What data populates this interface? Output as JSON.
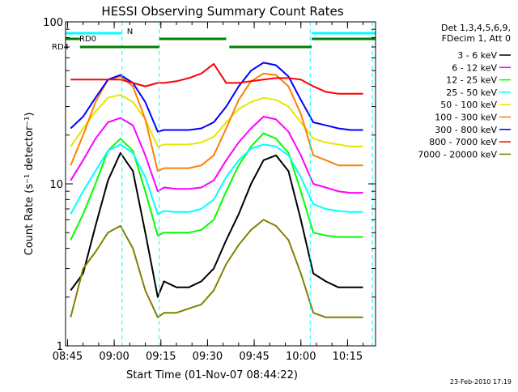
{
  "chart_data": {
    "type": "line",
    "title": "HESSI Observing Summary Count Rates",
    "xlabel": "Start Time (01-Nov-07 08:44:22)",
    "ylabel": "Count Rate (s⁻¹ detector⁻¹)",
    "yscale": "log",
    "ylim": [
      1,
      100
    ],
    "xlim": [
      "08:44:22",
      "10:24:00"
    ],
    "x_ticks": [
      "08:45",
      "09:00",
      "09:15",
      "09:30",
      "09:45",
      "10:00",
      "10:15"
    ],
    "y_ticks": [
      "1",
      "10",
      "100"
    ],
    "grid": false,
    "legend_position": "right",
    "legend_header": [
      "Det 1,3,4,5,6,9,",
      "FDecim 1, Att 0"
    ],
    "timestamp": "23-Feb-2010 17:19",
    "x": [
      "08:46",
      "08:50",
      "08:54",
      "08:58",
      "09:02",
      "09:06",
      "09:10",
      "09:14",
      "09:16",
      "09:20",
      "09:24",
      "09:28",
      "09:32",
      "09:36",
      "09:40",
      "09:44",
      "09:48",
      "09:52",
      "09:56",
      "10:00",
      "10:04",
      "10:08",
      "10:12",
      "10:16",
      "10:20"
    ],
    "series": [
      {
        "name": "3 - 6 keV",
        "color": "#000000",
        "values": [
          2.2,
          2.8,
          5.5,
          10.5,
          15.5,
          12.0,
          5.0,
          2.0,
          2.5,
          2.3,
          2.3,
          2.5,
          3.0,
          4.5,
          6.5,
          10.0,
          14.0,
          15.0,
          12.0,
          6.0,
          2.8,
          2.5,
          2.3,
          2.3,
          2.3
        ]
      },
      {
        "name": "6 - 12 keV",
        "color": "#ff00ff",
        "values": [
          10.5,
          14.0,
          19.0,
          24.0,
          25.5,
          23.0,
          15.0,
          9.0,
          9.5,
          9.3,
          9.3,
          9.5,
          10.5,
          14.0,
          18.0,
          22.0,
          26.0,
          25.0,
          21.0,
          15.0,
          10.0,
          9.5,
          9.0,
          8.8,
          8.8
        ]
      },
      {
        "name": "12 - 25 keV",
        "color": "#00ff00",
        "values": [
          4.5,
          6.5,
          10.0,
          16.0,
          19.0,
          16.0,
          9.0,
          4.8,
          5.0,
          5.0,
          5.0,
          5.2,
          6.0,
          9.0,
          13.0,
          17.0,
          20.5,
          19.0,
          15.5,
          9.0,
          5.0,
          4.8,
          4.7,
          4.7,
          4.7
        ]
      },
      {
        "name": "25 - 50 keV",
        "color": "#00ffff",
        "values": [
          6.5,
          9.0,
          12.0,
          16.0,
          17.5,
          15.5,
          11.0,
          6.5,
          6.8,
          6.7,
          6.7,
          7.0,
          8.0,
          11.0,
          14.0,
          16.5,
          17.5,
          17.0,
          15.0,
          11.0,
          7.5,
          7.0,
          6.8,
          6.7,
          6.7
        ]
      },
      {
        "name": "50 - 100 keV",
        "color": "#e6e600",
        "values": [
          17.0,
          22.0,
          28.0,
          34.0,
          35.5,
          32.0,
          25.0,
          17.0,
          17.5,
          17.5,
          17.5,
          18.0,
          19.5,
          24.0,
          29.0,
          32.0,
          34.0,
          33.0,
          30.0,
          24.0,
          19.0,
          18.0,
          17.5,
          17.0,
          17.0
        ]
      },
      {
        "name": "100 - 300 keV",
        "color": "#ff7f00",
        "values": [
          13.0,
          20.0,
          32.0,
          44.0,
          46.0,
          40.0,
          25.0,
          12.0,
          12.5,
          12.5,
          12.5,
          13.0,
          15.0,
          22.0,
          33.0,
          43.0,
          48.0,
          47.0,
          40.0,
          27.0,
          15.0,
          14.0,
          13.0,
          13.0,
          13.0
        ]
      },
      {
        "name": "300 - 800 keV",
        "color": "#0000ff",
        "values": [
          22.0,
          26.0,
          34.0,
          44.0,
          47.0,
          42.0,
          32.0,
          21.0,
          21.5,
          21.5,
          21.5,
          22.0,
          24.0,
          30.0,
          40.0,
          50.0,
          56.0,
          54.0,
          46.0,
          33.0,
          24.0,
          23.0,
          22.0,
          21.5,
          21.5
        ]
      },
      {
        "name": "800 - 7000 keV",
        "color": "#ff0000",
        "values": [
          44.0,
          44.0,
          44.0,
          44.0,
          44.0,
          42.0,
          40.0,
          42.0,
          42.0,
          43.0,
          45.0,
          48.0,
          55.0,
          42.0,
          42.0,
          43.0,
          44.0,
          45.0,
          45.0,
          44.0,
          40.0,
          37.0,
          36.0,
          36.0,
          36.0
        ]
      },
      {
        "name": "7000 - 20000 keV",
        "color": "#808000",
        "values": [
          1.5,
          3.0,
          3.8,
          5.0,
          5.5,
          4.0,
          2.2,
          1.5,
          1.6,
          1.6,
          1.7,
          1.8,
          2.2,
          3.2,
          4.2,
          5.2,
          6.0,
          5.5,
          4.5,
          2.8,
          1.6,
          1.5,
          1.5,
          1.5,
          1.5
        ]
      }
    ],
    "flags": [
      {
        "name": "N",
        "color": "#00ffff",
        "segments": [
          [
            "08:44:22",
            "09:02:30"
          ],
          [
            "10:03:30",
            "10:24:00"
          ]
        ]
      },
      {
        "name": "RD0",
        "color": "#008000",
        "segments": [
          [
            "08:44:22",
            "08:49:00"
          ],
          [
            "09:14:30",
            "09:36:00"
          ],
          [
            "10:03:30",
            "10:24:00"
          ]
        ]
      },
      {
        "name": "RD4",
        "color": "#008000",
        "segments": [
          [
            "08:49:00",
            "09:14:30"
          ],
          [
            "09:37:00",
            "10:03:30"
          ]
        ]
      }
    ],
    "vertical_markers": [
      "09:02:30",
      "09:14:30",
      "10:03:00",
      "10:23:00"
    ],
    "marker_color": "#00ffff"
  }
}
